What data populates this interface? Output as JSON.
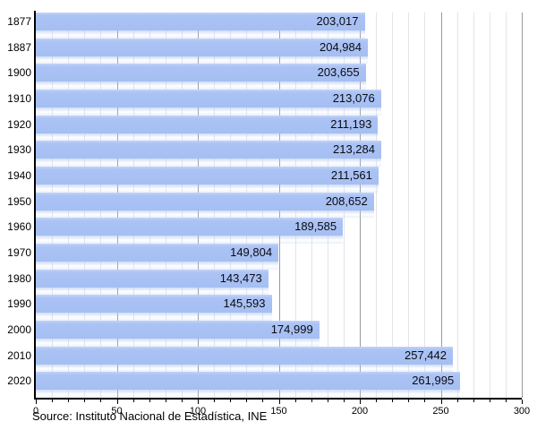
{
  "chart_data": {
    "type": "bar",
    "orientation": "horizontal",
    "title": "",
    "categories": [
      "1877",
      "1887",
      "1900",
      "1910",
      "1920",
      "1930",
      "1940",
      "1950",
      "1960",
      "1970",
      "1980",
      "1990",
      "2000",
      "2010",
      "2020"
    ],
    "values": [
      203017,
      204984,
      203655,
      213076,
      211193,
      213284,
      211561,
      208652,
      189585,
      149804,
      143473,
      145593,
      174999,
      257442,
      261995
    ],
    "value_labels": [
      "203,017",
      "204,984",
      "203,655",
      "213,076",
      "211,193",
      "213,284",
      "211,561",
      "208,652",
      "189,585",
      "149,804",
      "143,473",
      "145,593",
      "174,999",
      "257,442",
      "261,995"
    ],
    "x_axis": {
      "min": 0,
      "max": 300,
      "major_step": 50,
      "minor_step": 10,
      "tick_labels": [
        "0",
        "50",
        "100",
        "150",
        "200",
        "250",
        "300"
      ]
    },
    "grid": true,
    "legend_position": "none",
    "source_note": "Source: Instituto Nacional de Estadística, INE",
    "colors": {
      "bar": "#a8c1f3",
      "bar_highlight": "#c2d3f8",
      "grid_minor": "#e4e4e7",
      "grid_major": "#9a9a9a",
      "axis": "#000000",
      "text": "#000000"
    }
  }
}
